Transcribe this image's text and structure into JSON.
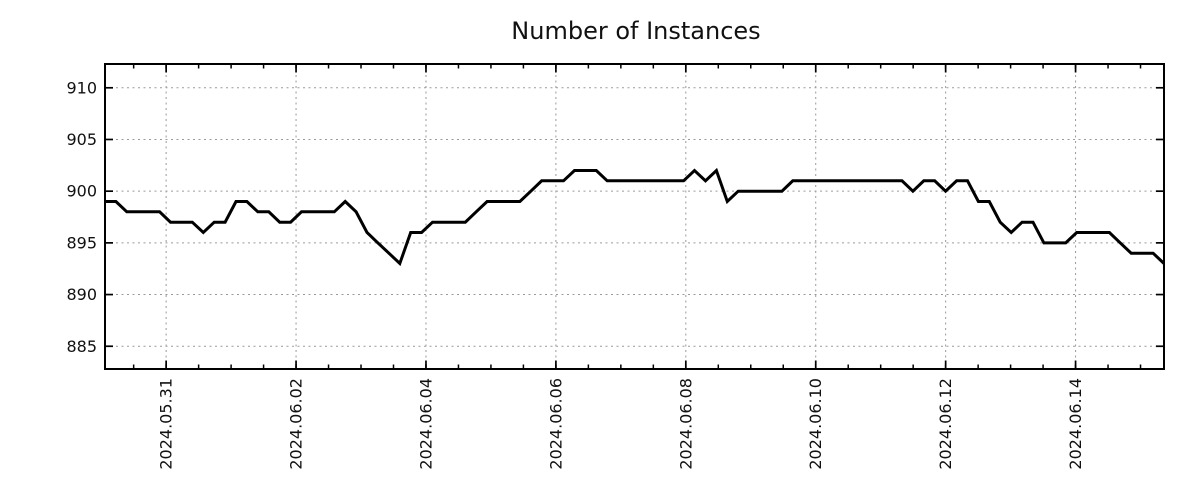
{
  "page": {
    "background": "#ffffff"
  },
  "chart_data": {
    "type": "line",
    "title": "Number of Instances",
    "xlabel": "",
    "ylabel": "",
    "grid": true,
    "legend_position": "none",
    "line_color": "#000000",
    "grid_color": "#9a9a9a",
    "axis_color": "#000000",
    "text_color": "#111111",
    "background_color": "#ffffff",
    "x_tick_labels": [
      "2024.05.31",
      "2024.06.02",
      "2024.06.04",
      "2024.06.06",
      "2024.06.08",
      "2024.06.10",
      "2024.06.12",
      "2024.06.14"
    ],
    "x_tick_positions": [
      5.6,
      17.5,
      29.4,
      41.3,
      53.2,
      65.1,
      77.0,
      88.9
    ],
    "x_minor_tick_step": 2.975,
    "xlim": [
      0,
      97
    ],
    "y_ticks": [
      885,
      890,
      895,
      900,
      905,
      910
    ],
    "ylim": [
      882.8,
      912.3
    ],
    "sample_interval_hours": 4,
    "series": [
      {
        "name": "instances",
        "values": [
          899,
          899,
          898,
          898,
          898,
          898,
          897,
          897,
          897,
          896,
          897,
          897,
          899,
          899,
          898,
          898,
          897,
          897,
          898,
          898,
          898,
          898,
          899,
          898,
          896,
          895,
          894,
          893,
          896,
          896,
          897,
          897,
          897,
          897,
          898,
          899,
          899,
          899,
          899,
          900,
          901,
          901,
          901,
          902,
          902,
          902,
          901,
          901,
          901,
          901,
          901,
          901,
          901,
          901,
          902,
          901,
          902,
          899,
          900,
          900,
          900,
          900,
          900,
          901,
          901,
          901,
          901,
          901,
          901,
          901,
          901,
          901,
          901,
          901,
          900,
          901,
          901,
          900,
          901,
          901,
          899,
          899,
          897,
          896,
          897,
          897,
          895,
          895,
          895,
          896,
          896,
          896,
          896,
          895,
          894,
          894,
          894,
          893
        ]
      }
    ]
  }
}
